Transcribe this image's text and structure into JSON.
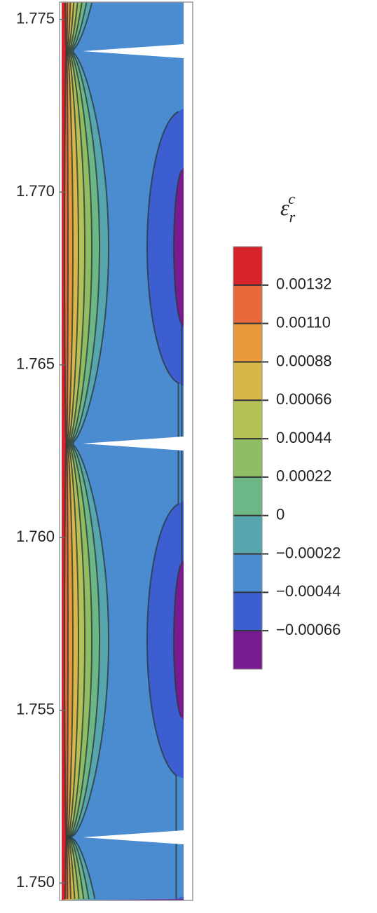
{
  "chart_data": {
    "type": "contour",
    "ylim": [
      1.7495,
      1.7755
    ],
    "yticks": [
      {
        "value": 1.75,
        "label": "1.750"
      },
      1.755,
      {
        "value": 1.76,
        "label": "1.760"
      },
      1.765,
      {
        "value": 1.77,
        "label": "1.770"
      },
      1.775
    ],
    "colorbar": {
      "title": "ε",
      "title_sub": "r",
      "title_sup": "c",
      "clim": [
        -0.00088,
        0.00154
      ],
      "ticks": [
        {
          "value": -0.00066,
          "label": "−0.00066"
        },
        {
          "value": -0.00044,
          "label": "−0.00044"
        },
        {
          "value": -0.00022,
          "label": "−0.00022"
        },
        0,
        0.00022,
        0.00044,
        0.00066,
        0.00088,
        {
          "value": 0.0011,
          "label": "0.00110"
        },
        0.00132
      ],
      "colors": [
        "#771b8f",
        "#3c5ed0",
        "#4a8ccf",
        "#57a6ae",
        "#6db686",
        "#8fbd63",
        "#b6c155",
        "#d6b747",
        "#e99a3d",
        "#e8683a",
        "#d7232a"
      ]
    }
  }
}
